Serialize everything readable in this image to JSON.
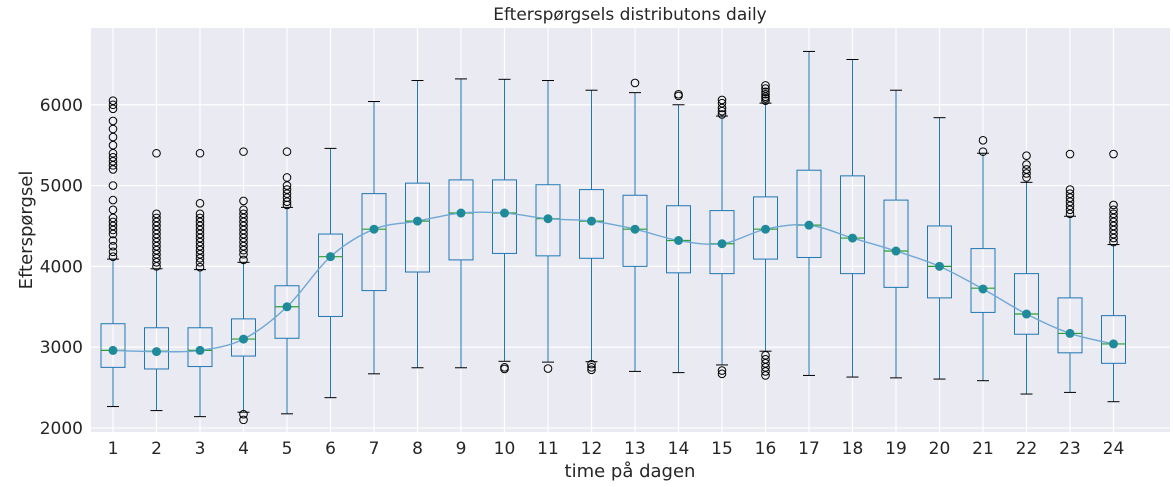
{
  "chart_data": {
    "type": "boxplot",
    "title": "Efterspørgsels distributons daily",
    "xlabel": "time på dagen",
    "ylabel": "Efterspørgsel",
    "ylim": [
      1950,
      6950
    ],
    "yticks": [
      2000,
      3000,
      4000,
      5000,
      6000
    ],
    "grid": true,
    "colors": {
      "background": "#eaeaf2",
      "grid": "#ffffff",
      "box": "#1f77b4",
      "median": "#2ca02c",
      "mean_marker": "#1f8a9a",
      "mean_line": "#6fa8d6"
    },
    "categories": [
      "1",
      "2",
      "3",
      "4",
      "5",
      "6",
      "7",
      "8",
      "9",
      "10",
      "11",
      "12",
      "13",
      "14",
      "15",
      "16",
      "17",
      "18",
      "19",
      "20",
      "21",
      "22",
      "23",
      "24"
    ],
    "boxes": [
      {
        "q1": 2750,
        "median": 2960,
        "q3": 3290,
        "whislo": 2265,
        "whishi": 4090,
        "mean": 2960,
        "outliers": [
          4120,
          4180,
          4250,
          4320,
          4400,
          4450,
          4500,
          4550,
          4600,
          4700,
          4820,
          5000,
          5200,
          5250,
          5300,
          5350,
          5400,
          5500,
          5600,
          5700,
          5800,
          5950,
          6000,
          6050
        ]
      },
      {
        "q1": 2730,
        "median": 2950,
        "q3": 3240,
        "whislo": 2215,
        "whishi": 3970,
        "mean": 2945,
        "outliers": [
          4000,
          4050,
          4100,
          4150,
          4200,
          4250,
          4300,
          4350,
          4400,
          4450,
          4500,
          4550,
          4600,
          4650,
          5400
        ]
      },
      {
        "q1": 2760,
        "median": 2960,
        "q3": 3240,
        "whislo": 2140,
        "whishi": 3960,
        "mean": 2960,
        "outliers": [
          3990,
          4050,
          4100,
          4150,
          4200,
          4250,
          4300,
          4350,
          4400,
          4450,
          4500,
          4550,
          4600,
          4650,
          4780,
          5400
        ]
      },
      {
        "q1": 2890,
        "median": 3100,
        "q3": 3350,
        "whislo": 2195,
        "whishi": 4050,
        "mean": 3100,
        "outliers": [
          2100,
          2170,
          4080,
          4150,
          4200,
          4250,
          4300,
          4350,
          4400,
          4450,
          4500,
          4550,
          4600,
          4650,
          4700,
          4810,
          5420
        ]
      },
      {
        "q1": 3110,
        "median": 3500,
        "q3": 3760,
        "whislo": 2175,
        "whishi": 4730,
        "mean": 3500,
        "outliers": [
          4760,
          4800,
          4850,
          4900,
          4950,
          5000,
          5100,
          5420
        ]
      },
      {
        "q1": 3380,
        "median": 4120,
        "q3": 4400,
        "whislo": 2375,
        "whishi": 5460,
        "mean": 4120,
        "outliers": []
      },
      {
        "q1": 3700,
        "median": 4460,
        "q3": 4900,
        "whislo": 2670,
        "whishi": 6040,
        "mean": 4460,
        "outliers": []
      },
      {
        "q1": 3930,
        "median": 4560,
        "q3": 5030,
        "whislo": 2745,
        "whishi": 6300,
        "mean": 4560,
        "outliers": []
      },
      {
        "q1": 4080,
        "median": 4660,
        "q3": 5070,
        "whislo": 2745,
        "whishi": 6320,
        "mean": 4660,
        "outliers": []
      },
      {
        "q1": 4160,
        "median": 4660,
        "q3": 5070,
        "whislo": 2825,
        "whishi": 6315,
        "mean": 4660,
        "outliers": [
          2730,
          2750
        ]
      },
      {
        "q1": 4130,
        "median": 4590,
        "q3": 5010,
        "whislo": 2815,
        "whishi": 6300,
        "mean": 4590,
        "outliers": [
          2735
        ]
      },
      {
        "q1": 4100,
        "median": 4560,
        "q3": 4950,
        "whislo": 2820,
        "whishi": 6180,
        "mean": 4560,
        "outliers": [
          2720,
          2750,
          2790
        ]
      },
      {
        "q1": 4000,
        "median": 4460,
        "q3": 4880,
        "whislo": 2700,
        "whishi": 6150,
        "mean": 4460,
        "outliers": [
          6270
        ]
      },
      {
        "q1": 3920,
        "median": 4320,
        "q3": 4750,
        "whislo": 2685,
        "whishi": 6000,
        "mean": 4320,
        "outliers": [
          6110,
          6130
        ]
      },
      {
        "q1": 3910,
        "median": 4280,
        "q3": 4690,
        "whislo": 2780,
        "whishi": 5860,
        "mean": 4280,
        "outliers": [
          2670,
          2710,
          5880,
          5920,
          5960,
          6020,
          6060
        ]
      },
      {
        "q1": 4090,
        "median": 4460,
        "q3": 4860,
        "whislo": 2950,
        "whishi": 6020,
        "mean": 4460,
        "outliers": [
          2650,
          2700,
          2750,
          2800,
          2850,
          2900,
          6050,
          6080,
          6100,
          6130,
          6160,
          6200,
          6240
        ]
      },
      {
        "q1": 4110,
        "median": 4510,
        "q3": 5190,
        "whislo": 2650,
        "whishi": 6660,
        "mean": 4510,
        "outliers": []
      },
      {
        "q1": 3910,
        "median": 4350,
        "q3": 5120,
        "whislo": 2630,
        "whishi": 6560,
        "mean": 4350,
        "outliers": []
      },
      {
        "q1": 3740,
        "median": 4190,
        "q3": 4820,
        "whislo": 2620,
        "whishi": 6180,
        "mean": 4190,
        "outliers": []
      },
      {
        "q1": 3610,
        "median": 4000,
        "q3": 4500,
        "whislo": 2605,
        "whishi": 5840,
        "mean": 4000,
        "outliers": []
      },
      {
        "q1": 3430,
        "median": 3730,
        "q3": 4220,
        "whislo": 2585,
        "whishi": 5400,
        "mean": 3720,
        "outliers": [
          5420,
          5560
        ]
      },
      {
        "q1": 3160,
        "median": 3410,
        "q3": 3910,
        "whislo": 2420,
        "whishi": 5040,
        "mean": 3410,
        "outliers": [
          5100,
          5150,
          5200,
          5260,
          5370
        ]
      },
      {
        "q1": 2930,
        "median": 3170,
        "q3": 3610,
        "whislo": 2440,
        "whishi": 4620,
        "mean": 3170,
        "outliers": [
          4650,
          4700,
          4750,
          4800,
          4850,
          4900,
          4950,
          5390
        ]
      },
      {
        "q1": 2800,
        "median": 3040,
        "q3": 3390,
        "whislo": 2325,
        "whishi": 4270,
        "mean": 3040,
        "outliers": [
          4300,
          4350,
          4400,
          4450,
          4500,
          4550,
          4600,
          4650,
          4700,
          4760,
          5390
        ]
      }
    ]
  }
}
